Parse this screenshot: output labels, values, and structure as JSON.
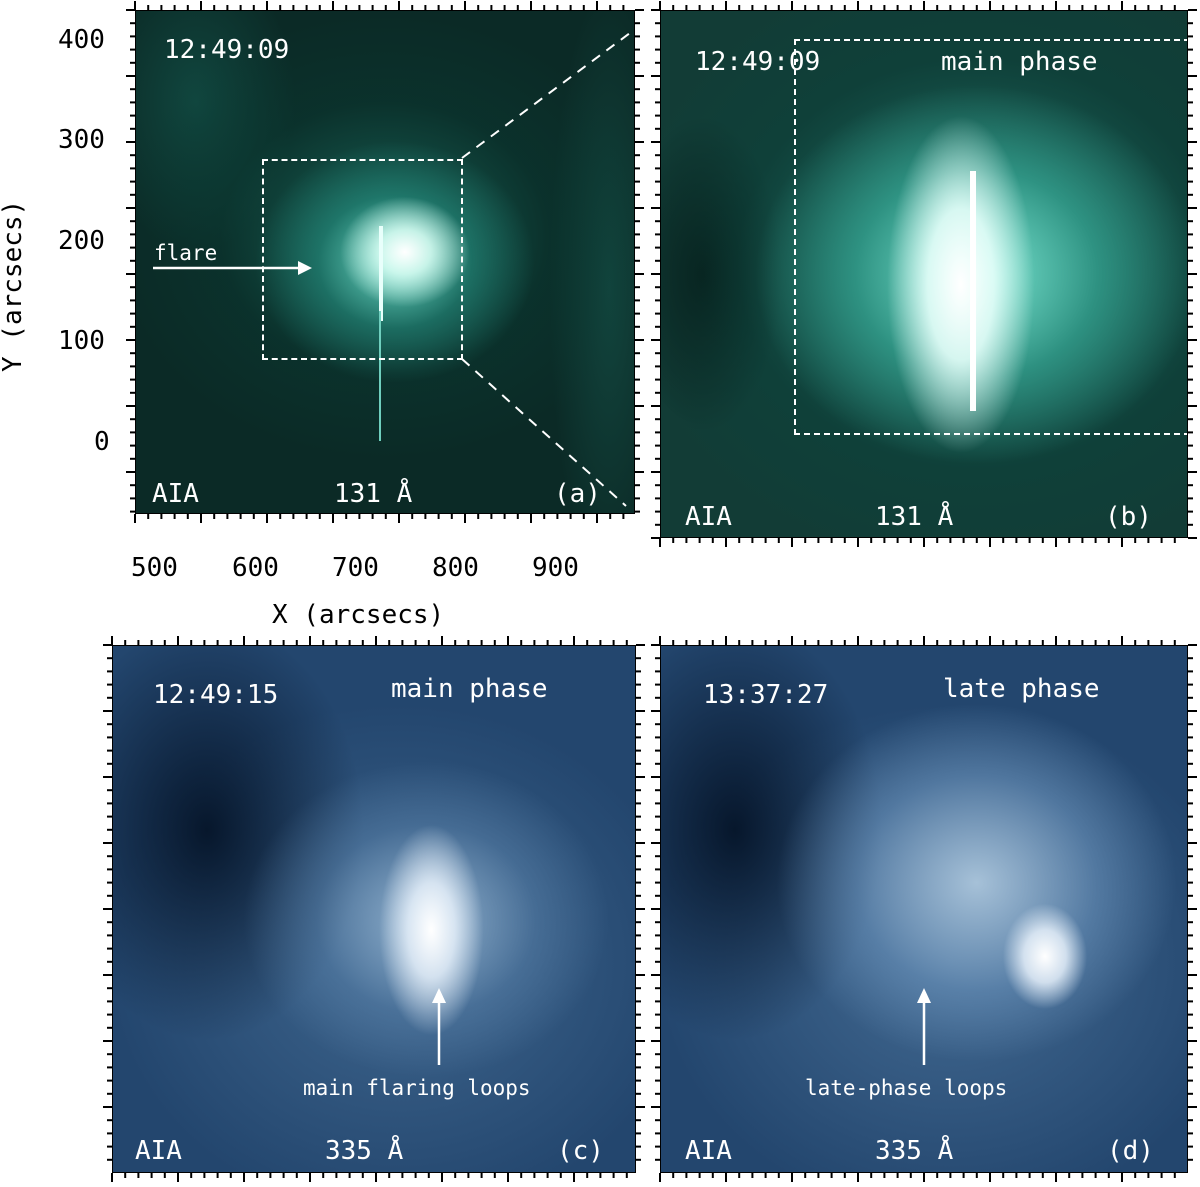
{
  "figure": {
    "axes": {
      "xlabel": "X (arcsecs)",
      "ylabel": "Y (arcsecs)",
      "x_ticks": [
        "500",
        "600",
        "700",
        "800",
        "900"
      ],
      "y_ticks": [
        "400",
        "300",
        "200",
        "100",
        "0"
      ]
    },
    "panels": [
      {
        "id": "a",
        "time": "12:49:09",
        "phase": "",
        "instrument": "AIA",
        "wavelength": "131 Å",
        "tag": "(a)",
        "annotation": "flare",
        "color_theme": "#1fb8a3"
      },
      {
        "id": "b",
        "time": "12:49:09",
        "phase": "main phase",
        "instrument": "AIA",
        "wavelength": "131 Å",
        "tag": "(b)",
        "annotation": "",
        "color_theme": "#3fd9c0"
      },
      {
        "id": "c",
        "time": "12:49:15",
        "phase": "main phase",
        "instrument": "AIA",
        "wavelength": "335 Å",
        "tag": "(c)",
        "annotation": "main flaring loops",
        "color_theme": "#5b87b5"
      },
      {
        "id": "d",
        "time": "13:37:27",
        "phase": "late phase",
        "instrument": "AIA",
        "wavelength": "335 Å",
        "tag": "(d)",
        "annotation": "late-phase loops",
        "color_theme": "#6f98c2"
      }
    ]
  }
}
